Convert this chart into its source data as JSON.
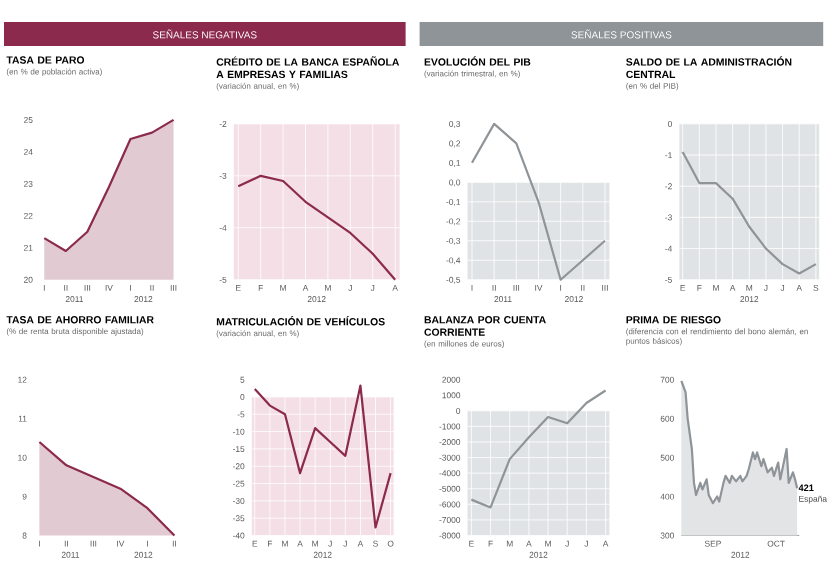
{
  "chart_data": [
    {
      "type": "other",
      "title": "SEÑALES NEGATIVAS",
      "color": "#8c2a4e"
    },
    {
      "type": "other",
      "title": "SEÑALES POSITIVAS",
      "color": "#8f9498"
    },
    {
      "type": "area",
      "title": "TASA DE PARO",
      "subtitle": "(en % de población activa)",
      "categories": [
        "I",
        "II",
        "III",
        "IV",
        "I",
        "II",
        "III"
      ],
      "values": [
        21.3,
        20.9,
        21.5,
        22.9,
        24.4,
        24.6,
        25.0
      ],
      "color": "#8c2a4e",
      "ylim": [
        20,
        25
      ],
      "yticks": [
        20,
        21,
        22,
        23,
        24,
        25
      ],
      "annotations": [
        "2011",
        "2012"
      ]
    },
    {
      "type": "line",
      "title": "CRÉDITO DE LA BANCA ESPAÑOLA A EMPRESAS Y FAMILIAS",
      "subtitle": "(variación anual, en %)",
      "categories": [
        "E",
        "F",
        "M",
        "A",
        "M",
        "J",
        "J",
        "A"
      ],
      "values": [
        -3.2,
        -3.0,
        -3.1,
        -3.5,
        -3.8,
        -4.1,
        -4.5,
        -5.0
      ],
      "color": "#8c2a4e",
      "ylim": [
        -5,
        -2
      ],
      "yticks": [
        -5,
        -4,
        -3,
        -2
      ],
      "grid": true,
      "bands": [
        {
          "axis": "y",
          "from": -5,
          "to": -2,
          "color": "#f3dfe5"
        }
      ],
      "annotations": [
        "2012"
      ]
    },
    {
      "type": "line",
      "title": "EVOLUCIÓN DEL PIB",
      "subtitle": "(variación trimestral, en %)",
      "categories": [
        "I",
        "II",
        "III",
        "IV",
        "I",
        "II",
        "III"
      ],
      "values": [
        0.1,
        0.3,
        0.2,
        -0.1,
        -0.5,
        -0.4,
        -0.3
      ],
      "color": "#8f9498",
      "ylim": [
        -0.5,
        0.3
      ],
      "yticks": [
        {
          "value": -0.5,
          "label": "-0,5"
        },
        {
          "value": -0.4,
          "label": "-0,4"
        },
        {
          "value": -0.3,
          "label": "-0,3"
        },
        {
          "value": -0.2,
          "label": "-0,2"
        },
        {
          "value": -0.1,
          "label": "-0,1"
        },
        {
          "value": 0,
          "label": "0,0"
        },
        {
          "value": 0.1,
          "label": "0,1"
        },
        {
          "value": 0.2,
          "label": "0,2"
        },
        {
          "value": 0.3,
          "label": "0,3"
        }
      ],
      "grid": true,
      "bands": [
        {
          "axis": "y",
          "from": -0.5,
          "to": 0,
          "color": "#e0e3e5"
        }
      ],
      "annotations": [
        "2011",
        "2012"
      ]
    },
    {
      "type": "line",
      "title": "SALDO DE LA ADMINISTRACIÓN CENTRAL",
      "subtitle": "(en % del PIB)",
      "categories": [
        "E",
        "F",
        "M",
        "A",
        "M",
        "J",
        "J",
        "A",
        "S"
      ],
      "values": [
        -0.9,
        -1.9,
        -1.9,
        -2.4,
        -3.3,
        -4.0,
        -4.5,
        -4.8,
        -4.5
      ],
      "color": "#8f9498",
      "ylim": [
        -5,
        0
      ],
      "yticks": [
        -5,
        -4,
        -3,
        -2,
        -1,
        0
      ],
      "grid": true,
      "bands": [
        {
          "axis": "y",
          "from": -5,
          "to": 0,
          "color": "#e0e3e5"
        }
      ],
      "annotations": [
        "2012"
      ]
    },
    {
      "type": "area",
      "title": "TASA DE AHORRO FAMILIAR",
      "subtitle": "(% de renta bruta disponible ajustada)",
      "categories": [
        "I",
        "II",
        "III",
        "IV",
        "I",
        "II"
      ],
      "values": [
        10.4,
        9.8,
        9.5,
        9.2,
        8.7,
        8.0
      ],
      "color": "#8c2a4e",
      "ylim": [
        8,
        12
      ],
      "yticks": [
        8,
        9,
        10,
        11,
        12
      ],
      "annotations": [
        "2011",
        "2012"
      ]
    },
    {
      "type": "line",
      "title": "MATRICULACIÓN DE VEHÍCULOS",
      "subtitle": "(variación anual, en %)",
      "categories": [
        "E",
        "F",
        "M",
        "A",
        "M",
        "J",
        "J",
        "A",
        "S",
        "O"
      ],
      "values": [
        2.3,
        -2.5,
        -5,
        -22,
        -9,
        -13,
        -17,
        3.3,
        -37.7,
        -22
      ],
      "color": "#8c2a4e",
      "ylim": [
        -40,
        5
      ],
      "yticks": [
        -40,
        -35,
        -30,
        -25,
        -20,
        -15,
        -10,
        -5,
        0,
        5
      ],
      "grid": true,
      "bands": [
        {
          "axis": "y",
          "from": -40,
          "to": 0,
          "color": "#f3dfe5"
        }
      ],
      "annotations": [
        "2012"
      ]
    },
    {
      "type": "line",
      "title": "BALANZA POR CUENTA CORRIENTE",
      "subtitle": "(en millones de euros)",
      "categories": [
        "E",
        "F",
        "M",
        "A",
        "M",
        "J",
        "J",
        "A"
      ],
      "values": [
        -5700,
        -6200,
        -3100,
        -1700,
        -400,
        -800,
        500,
        1300
      ],
      "color": "#8f9498",
      "ylim": [
        -8000,
        2000
      ],
      "yticks": [
        -8000,
        -7000,
        -6000,
        -5000,
        -4000,
        -3000,
        -2000,
        -1000,
        0,
        1000,
        2000
      ],
      "grid": true,
      "bands": [
        {
          "axis": "y",
          "from": -8000,
          "to": 0,
          "color": "#e0e3e5"
        }
      ],
      "annotations": [
        "2012"
      ]
    },
    {
      "type": "area",
      "title": "PRIMA DE RIESGO",
      "subtitle": "(diferencia con el rendimiento del bono alemán, en puntos básicos)",
      "x": [
        "2012-08-31",
        "2012-09-02",
        "2012-09-03",
        "2012-09-05",
        "2012-09-06",
        "2012-09-07",
        "2012-09-09",
        "2012-09-10",
        "2012-09-12",
        "2012-09-13",
        "2012-09-15",
        "2012-09-17",
        "2012-09-18",
        "2012-09-20",
        "2012-09-21",
        "2012-09-23",
        "2012-09-24",
        "2012-09-26",
        "2012-09-28",
        "2012-09-29",
        "2012-10-01",
        "2012-10-02",
        "2012-10-04",
        "2012-10-05",
        "2012-10-06",
        "2012-10-08",
        "2012-10-09",
        "2012-10-11",
        "2012-10-13",
        "2012-10-14",
        "2012-10-16",
        "2012-10-17",
        "2012-10-20",
        "2012-10-21",
        "2012-10-23",
        "2012-10-24",
        "2012-10-25"
      ],
      "xlim": [
        "2012-08-31",
        "2012-10-26"
      ],
      "xticks": [
        {
          "value": "2012-09-15",
          "label": "SEP"
        },
        {
          "value": "2012-10-15",
          "label": "OCT"
        }
      ],
      "series": [
        {
          "name": "España",
          "color": "#8f9498",
          "values": [
            697,
            668,
            600,
            522,
            435,
            404,
            435,
            418,
            444,
            404,
            383,
            400,
            387,
            435,
            453,
            435,
            453,
            439,
            453,
            439,
            453,
            470,
            513,
            496,
            513,
            478,
            496,
            462,
            474,
            453,
            487,
            444,
            522,
            435,
            462,
            444,
            421
          ]
        }
      ],
      "ylim": [
        300,
        700
      ],
      "yticks": [
        300,
        400,
        500,
        600,
        700
      ],
      "annotations": [
        "2012",
        {
          "text": "421",
          "x": "2012-10-25",
          "y": 421
        }
      ]
    }
  ]
}
